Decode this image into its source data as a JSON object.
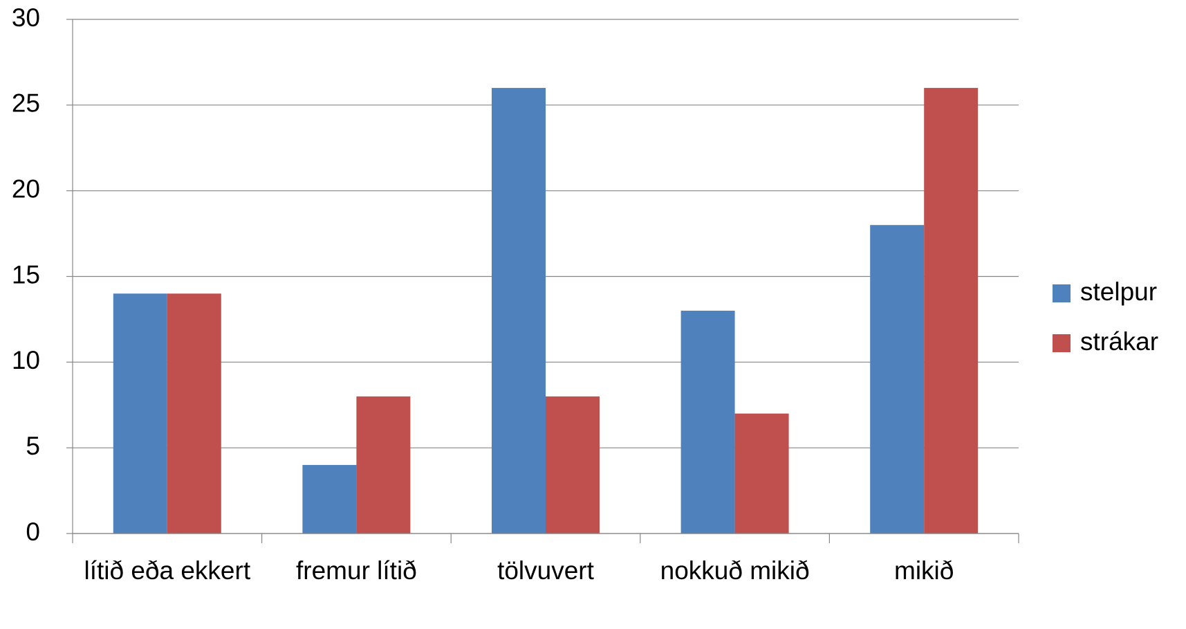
{
  "chart_data": {
    "type": "bar",
    "categories": [
      "lítið eða ekkert",
      "fremur lítið",
      "tölvuvert",
      "nokkuð mikið",
      "mikið"
    ],
    "series": [
      {
        "name": "stelpur",
        "color": "#4f81bd",
        "values": [
          14,
          4,
          26,
          13,
          18
        ]
      },
      {
        "name": "strákar",
        "color": "#c0504d",
        "values": [
          14,
          8,
          8,
          7,
          26
        ]
      }
    ],
    "ylim": [
      0,
      30
    ],
    "yticks": [
      0,
      5,
      10,
      15,
      20,
      25,
      30
    ],
    "grid": true,
    "legend": "right"
  }
}
